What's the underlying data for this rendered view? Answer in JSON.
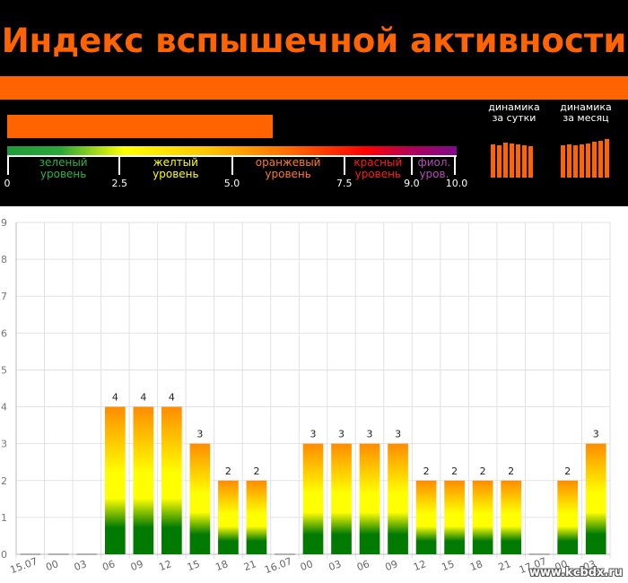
{
  "header": {
    "title": "Индекс вспышечной активности"
  },
  "scale": {
    "ticks": [
      "0",
      "2.5",
      "5.0",
      "7.5",
      "9.0",
      "10.0"
    ],
    "tick_values": [
      0,
      2.5,
      5.0,
      7.5,
      9.0,
      10.0
    ],
    "max": 10,
    "current_level_fraction": 0.59,
    "levels": [
      {
        "line1": "зеленый",
        "line2": "уровень",
        "color": "#2ab34a"
      },
      {
        "line1": "желтый",
        "line2": "уровень",
        "color": "#ffff00"
      },
      {
        "line1": "оранжевый",
        "line2": "уровень",
        "color": "#ff7a1a"
      },
      {
        "line1": "красный",
        "line2": "уровень",
        "color": "#ff1a1a"
      },
      {
        "line1": "фиол.",
        "line2": "уров.",
        "color": "#b34db3"
      }
    ]
  },
  "dynamics": {
    "daily": {
      "line1": "динамика",
      "line2": "за сутки",
      "values": [
        0.82,
        0.8,
        0.86,
        0.84,
        0.82,
        0.8,
        0.78
      ]
    },
    "monthly": {
      "line1": "динамика",
      "line2": "за месяц",
      "values": [
        0.8,
        0.82,
        0.8,
        0.82,
        0.85,
        0.9,
        0.92,
        0.95
      ]
    }
  },
  "watermark": "www.kcbdx.ru",
  "chart_data": {
    "type": "bar",
    "categories": [
      "15.07",
      "00",
      "03",
      "06",
      "09",
      "12",
      "15",
      "18",
      "21",
      "16.07",
      "00",
      "03",
      "06",
      "09",
      "12",
      "15",
      "18",
      "21",
      "17.07",
      "00",
      "03"
    ],
    "tick_labels": [
      "15.07",
      "00",
      "03",
      "06",
      "09",
      "12",
      "15",
      "18",
      "21",
      "16.07",
      "00",
      "03",
      "06",
      "09",
      "12",
      "15",
      "18",
      "21",
      "17.07",
      "00",
      "03"
    ],
    "values": [
      0,
      0,
      0,
      4,
      4,
      4,
      3,
      2,
      2,
      0,
      3,
      3,
      3,
      3,
      2,
      2,
      2,
      2,
      0,
      2,
      3
    ],
    "data_labels": [
      "",
      "",
      "",
      "4",
      "4",
      "4",
      "3",
      "2",
      "2",
      "",
      "3",
      "3",
      "3",
      "3",
      "2",
      "2",
      "2",
      "2",
      "",
      "2",
      "3"
    ],
    "ylim": [
      0,
      9
    ],
    "yticks": [
      "0",
      "1",
      "2",
      "3",
      "4",
      "5",
      "6",
      "7",
      "8",
      "9"
    ],
    "ytick_values": [
      0,
      1,
      2,
      3,
      4,
      5,
      6,
      7,
      8,
      9
    ],
    "grid": true,
    "bar_gradient": [
      "#ff8c00",
      "#ffff00",
      "#007a00"
    ]
  }
}
